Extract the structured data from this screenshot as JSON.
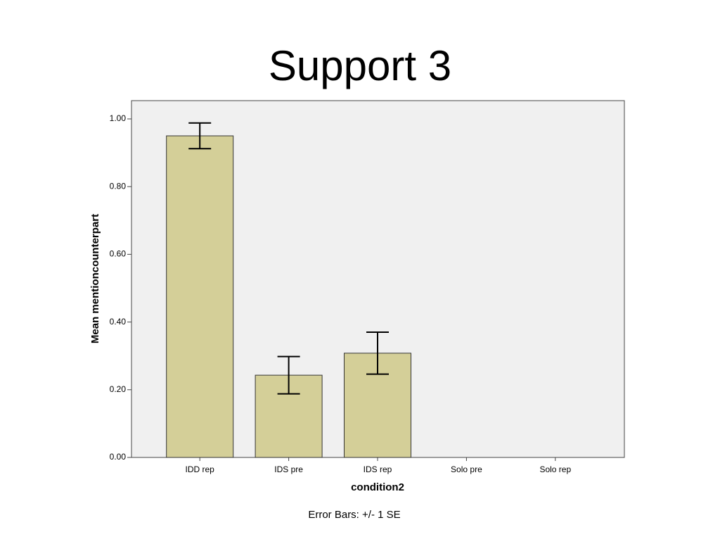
{
  "chart_data": {
    "type": "bar",
    "title": "Support 3",
    "x_label": "condition2",
    "y_label": "Mean mentioncounterpart",
    "annotation": "Error Bars: +/- 1 SE",
    "categories": [
      "IDD rep",
      "IDS pre",
      "IDS rep",
      "Solo pre",
      "Solo rep"
    ],
    "values": [
      0.95,
      0.243,
      0.308,
      0,
      0
    ],
    "errors": [
      0.038,
      0.055,
      0.062,
      null,
      null
    ],
    "color": "#d4cf98",
    "ylim": [
      0,
      1.054
    ],
    "yticks": [
      {
        "value": 0,
        "label": "0.00"
      },
      {
        "value": 0.2,
        "label": "0.20"
      },
      {
        "value": 0.4,
        "label": "0.40"
      },
      {
        "value": 0.6,
        "label": "0.60"
      },
      {
        "value": 0.8,
        "label": "0.80"
      },
      {
        "value": 1,
        "label": "1.00"
      }
    ],
    "grid": false
  }
}
